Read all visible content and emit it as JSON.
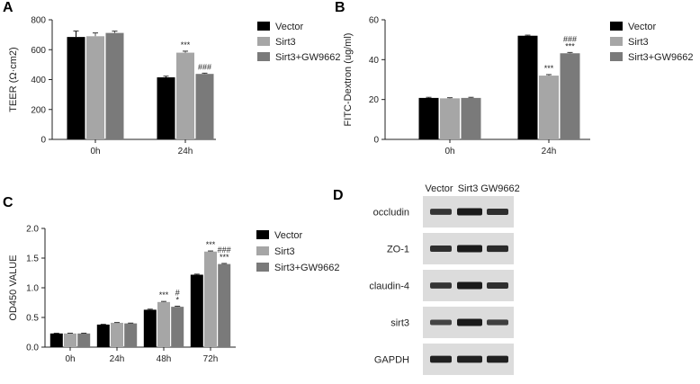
{
  "colors": {
    "vector": "#000000",
    "sirt3": "#a6a6a6",
    "combo": "#7a7a7a",
    "axis": "#222222",
    "blot_bg": "#dcdcdc",
    "band": "#1a1a1a"
  },
  "chart_data": [
    {
      "panel": "A",
      "type": "bar",
      "categories": [
        "0h",
        "24h"
      ],
      "ylabel": "TEER (Ω·cm2)",
      "ylim": [
        0,
        800
      ],
      "yticks": [
        "0",
        "200",
        "400",
        "600",
        "800"
      ],
      "legend_position": "right",
      "series": [
        {
          "name": "Vector",
          "values": [
            685,
            415
          ],
          "errors": [
            40,
            8
          ]
        },
        {
          "name": "Sirt3",
          "values": [
            690,
            580
          ],
          "errors": [
            22,
            10
          ]
        },
        {
          "name": "Sirt3+GW9662",
          "values": [
            712,
            438
          ],
          "errors": [
            12,
            5
          ]
        }
      ],
      "annotations": [
        [
          "",
          ""
        ],
        [
          "",
          "***"
        ],
        [
          "",
          "###"
        ]
      ]
    },
    {
      "panel": "B",
      "type": "bar",
      "categories": [
        "0h",
        "24h"
      ],
      "ylabel": "FITC-Dextron (ug/ml)",
      "ylim": [
        0,
        60
      ],
      "yticks": [
        "0",
        "20",
        "40",
        "60"
      ],
      "legend_position": "right",
      "series": [
        {
          "name": "Vector",
          "values": [
            20.8,
            52
          ],
          "errors": [
            0.3,
            0.3
          ]
        },
        {
          "name": "Sirt3",
          "values": [
            20.6,
            32
          ],
          "errors": [
            0.3,
            0.5
          ]
        },
        {
          "name": "Sirt3+GW9662",
          "values": [
            20.8,
            43.2
          ],
          "errors": [
            0.3,
            0.4
          ]
        }
      ],
      "annotations": [
        [
          "",
          ""
        ],
        [
          "",
          "***"
        ],
        [
          "",
          "###\n***"
        ]
      ]
    },
    {
      "panel": "C",
      "type": "bar",
      "categories": [
        "0h",
        "24h",
        "48h",
        "72h"
      ],
      "ylabel": "OD450 VALUE",
      "ylim": [
        0,
        2.0
      ],
      "yticks": [
        "0.0",
        "0.5",
        "1.0",
        "1.5",
        "2.0"
      ],
      "legend_position": "right",
      "series": [
        {
          "name": "Vector",
          "values": [
            0.23,
            0.38,
            0.63,
            1.22
          ],
          "errors": [
            0.005,
            0.005,
            0.01,
            0.01
          ]
        },
        {
          "name": "Sirt3",
          "values": [
            0.23,
            0.41,
            0.76,
            1.61
          ],
          "errors": [
            0.005,
            0.005,
            0.01,
            0.01
          ]
        },
        {
          "name": "Sirt3+GW9662",
          "values": [
            0.23,
            0.4,
            0.68,
            1.4
          ],
          "errors": [
            0.005,
            0.005,
            0.01,
            0.01
          ]
        }
      ],
      "annotations": [
        [
          "",
          "",
          "",
          ""
        ],
        [
          "",
          "",
          "***",
          "***"
        ],
        [
          "",
          "",
          "#\n*",
          "###\n***"
        ]
      ]
    }
  ],
  "blot": {
    "panel": "D",
    "columns": [
      "Vector",
      "Sirt3",
      "GW9662"
    ],
    "rows": [
      {
        "label": "occludin",
        "intensity": [
          0.75,
          1.0,
          0.8
        ]
      },
      {
        "label": "ZO-1",
        "intensity": [
          0.8,
          1.0,
          0.85
        ]
      },
      {
        "label": "claudin-4",
        "intensity": [
          0.75,
          1.0,
          0.8
        ]
      },
      {
        "label": "sirt3",
        "intensity": [
          0.6,
          1.0,
          0.65
        ]
      },
      {
        "label": "GAPDH",
        "intensity": [
          0.95,
          0.95,
          0.95
        ]
      }
    ]
  }
}
